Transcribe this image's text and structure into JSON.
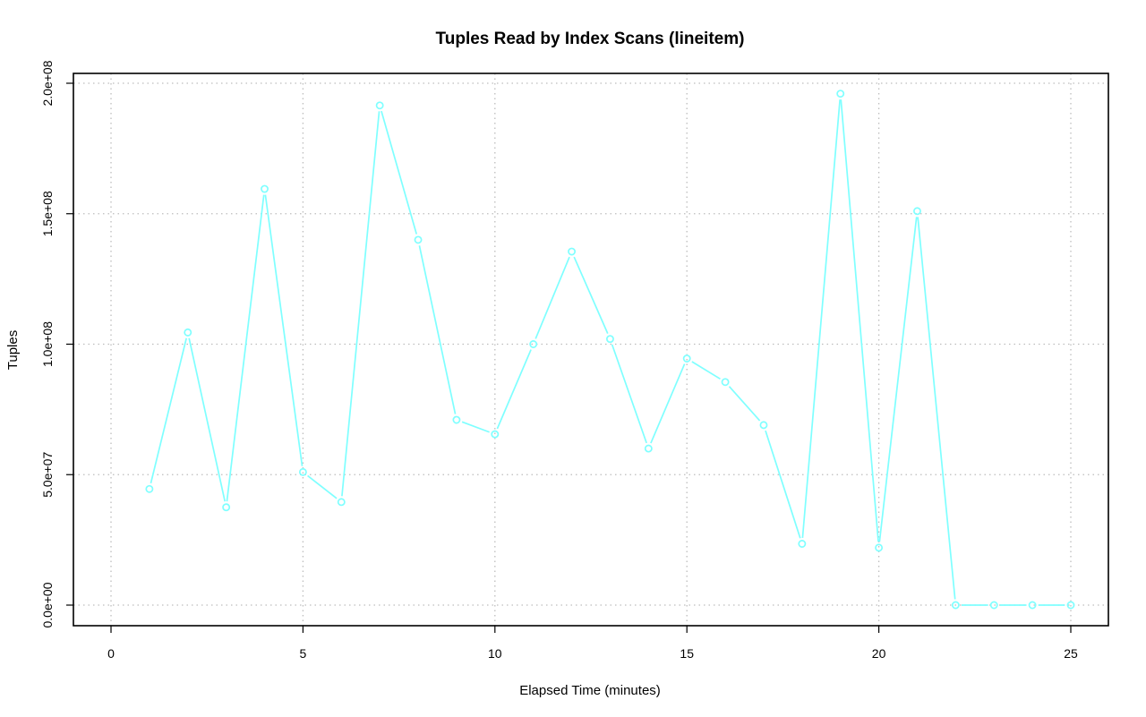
{
  "chart_data": {
    "type": "line",
    "title": "Tuples Read by Index Scans (lineitem)",
    "xlabel": "Elapsed Time (minutes)",
    "ylabel": "Tuples",
    "xlim": [
      0,
      25
    ],
    "ylim": [
      0,
      200000000
    ],
    "xticks": [
      0,
      5,
      10,
      15,
      20,
      25
    ],
    "xtick_labels": [
      "0",
      "5",
      "10",
      "15",
      "20",
      "25"
    ],
    "yticks": [
      0,
      50000000,
      100000000,
      150000000,
      200000000
    ],
    "ytick_labels": [
      "0.0e+00",
      "5.0e+07",
      "1.0e+08",
      "1.5e+08",
      "2.0e+08"
    ],
    "grid": true,
    "series": [
      {
        "color": "#7fffff",
        "marker": "open-circle",
        "x": [
          1,
          2,
          3,
          4,
          5,
          6,
          7,
          8,
          9,
          10,
          11,
          12,
          13,
          14,
          15,
          16,
          17,
          18,
          19,
          20,
          21,
          22,
          23,
          24,
          25
        ],
        "values": [
          44500000,
          104500000,
          37500000,
          159500000,
          51000000,
          39500000,
          191500000,
          140000000,
          71000000,
          65500000,
          100000000,
          135500000,
          102000000,
          60000000,
          94500000,
          85500000,
          69000000,
          23500000,
          196000000,
          22000000,
          151000000,
          0,
          0,
          0,
          0
        ]
      }
    ]
  }
}
